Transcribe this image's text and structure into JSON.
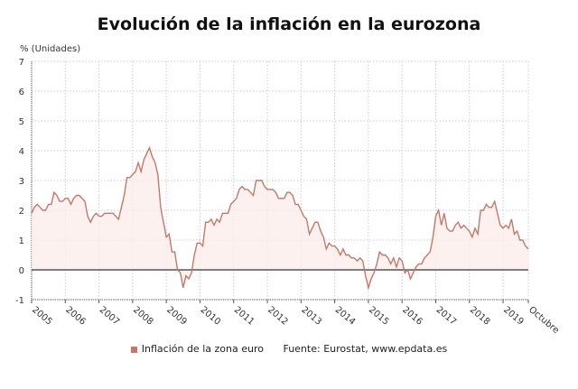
{
  "chart_data": {
    "type": "area",
    "title": "Evolución de la inflación en la eurozona",
    "ylabel": "% (Unidades)",
    "ylim": [
      -1,
      7
    ],
    "yticks": [
      "-1",
      "0",
      "1",
      "2",
      "3",
      "4",
      "5",
      "6",
      "7"
    ],
    "xticks": [
      "2005",
      "2006",
      "2007",
      "2008",
      "2009",
      "2010",
      "2011",
      "2012",
      "2013",
      "2014",
      "2015",
      "2016",
      "2017",
      "2018",
      "2019",
      "Octubre"
    ],
    "x_start": "2005-01",
    "x_end": "2019-10",
    "grid": true,
    "legend_position": "bottom",
    "series": [
      {
        "name": "Inflación de la zona euro",
        "color": "#c5786a",
        "values": [
          1.9,
          2.1,
          2.2,
          2.1,
          2.0,
          2.0,
          2.2,
          2.2,
          2.6,
          2.5,
          2.3,
          2.3,
          2.4,
          2.4,
          2.2,
          2.4,
          2.5,
          2.5,
          2.4,
          2.3,
          1.8,
          1.6,
          1.8,
          1.9,
          1.8,
          1.8,
          1.9,
          1.9,
          1.9,
          1.9,
          1.8,
          1.7,
          2.1,
          2.5,
          3.1,
          3.1,
          3.2,
          3.3,
          3.6,
          3.3,
          3.7,
          3.9,
          4.1,
          3.8,
          3.6,
          3.2,
          2.1,
          1.6,
          1.1,
          1.2,
          0.6,
          0.6,
          0.0,
          -0.1,
          -0.6,
          -0.2,
          -0.3,
          -0.1,
          0.5,
          0.9,
          0.9,
          0.8,
          1.6,
          1.6,
          1.7,
          1.5,
          1.7,
          1.6,
          1.9,
          1.9,
          1.9,
          2.2,
          2.3,
          2.4,
          2.7,
          2.8,
          2.7,
          2.7,
          2.6,
          2.5,
          3.0,
          3.0,
          3.0,
          2.8,
          2.7,
          2.7,
          2.7,
          2.6,
          2.4,
          2.4,
          2.4,
          2.6,
          2.6,
          2.5,
          2.2,
          2.2,
          2.0,
          1.8,
          1.7,
          1.2,
          1.4,
          1.6,
          1.6,
          1.3,
          1.1,
          0.7,
          0.9,
          0.8,
          0.8,
          0.7,
          0.5,
          0.7,
          0.5,
          0.5,
          0.4,
          0.4,
          0.3,
          0.4,
          0.3,
          -0.2,
          -0.6,
          -0.3,
          -0.1,
          0.2,
          0.6,
          0.5,
          0.5,
          0.4,
          0.2,
          0.4,
          0.1,
          0.4,
          0.3,
          -0.1,
          0.0,
          -0.3,
          -0.1,
          0.1,
          0.2,
          0.2,
          0.4,
          0.5,
          0.6,
          1.1,
          1.8,
          2.0,
          1.5,
          1.9,
          1.4,
          1.3,
          1.3,
          1.5,
          1.6,
          1.4,
          1.5,
          1.4,
          1.3,
          1.1,
          1.4,
          1.2,
          2.0,
          2.0,
          2.2,
          2.1,
          2.1,
          2.3,
          1.9,
          1.5,
          1.4,
          1.5,
          1.4,
          1.7,
          1.2,
          1.3,
          1.0,
          1.0,
          0.8,
          0.7
        ]
      }
    ],
    "source": "Fuente: Eurostat, www.epdata.es"
  }
}
